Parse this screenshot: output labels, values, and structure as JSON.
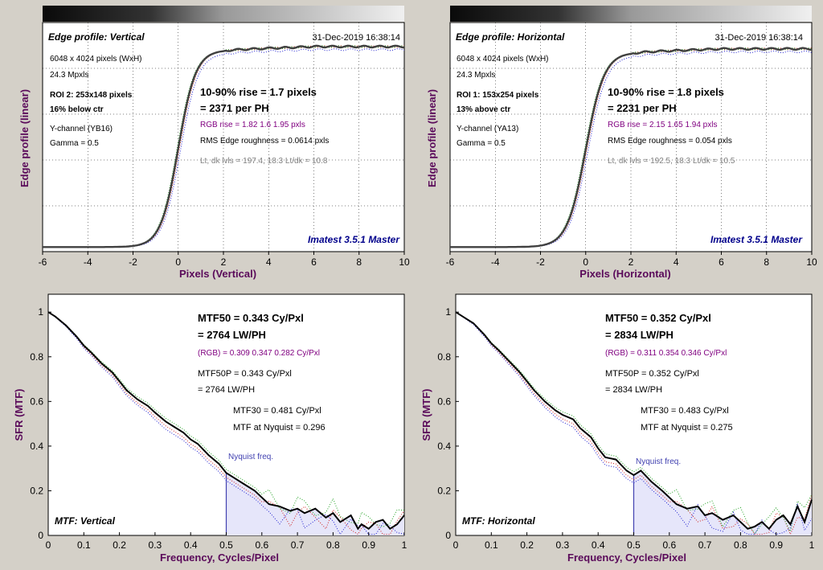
{
  "chart_data": [
    {
      "id": "edge_v",
      "type": "line",
      "title": "Edge profile: Vertical",
      "timestamp": "31-Dec-2019 16:38:14",
      "xlabel": "Pixels (Vertical)",
      "ylabel": "Edge profile (linear)",
      "xlim": [
        -6,
        10
      ],
      "xticks": [
        "-6",
        "-4",
        "-2",
        "0",
        "2",
        "4",
        "6",
        "8",
        "10"
      ],
      "ylim": [
        0,
        1
      ],
      "grid": true,
      "center": 0,
      "rise": 1.7,
      "plateau": 0.88,
      "info": {
        "dims": "6048 x 4024 pixels (WxH)",
        "mp": "24.3 Mpxls",
        "roi": "ROI 2:  253x148 pixels",
        "loc": "16% below ctr",
        "channel": "Y-channel  (YB16)",
        "gamma": "Gamma = 0.5"
      },
      "results": {
        "rise": "10-90% rise = 1.7 pixels",
        "ph": "= 2371 per PH",
        "rgb": "RGB rise = 1.82  1.6  1.95 pxls",
        "rms": "RMS Edge roughness = 0.0614 pxls",
        "lvls": "Lt, dk lvls = 197.4, 18.3   Lt/dk = 10.8"
      },
      "brand": "Imatest 3.5.1 Master"
    },
    {
      "id": "edge_h",
      "type": "line",
      "title": "Edge profile: Horizontal",
      "timestamp": "31-Dec-2019 16:38:14",
      "xlabel": "Pixels (Horizontal)",
      "ylabel": "Edge profile (linear)",
      "xlim": [
        -6,
        10
      ],
      "xticks": [
        "-6",
        "-4",
        "-2",
        "0",
        "2",
        "4",
        "6",
        "8",
        "10"
      ],
      "ylim": [
        0,
        1
      ],
      "grid": true,
      "center": 0,
      "rise": 1.8,
      "plateau": 0.87,
      "info": {
        "dims": "6048 x 4024 pixels (WxH)",
        "mp": "24.3 Mpxls",
        "roi": "ROI 1:  153x254 pixels",
        "loc": "13% above ctr",
        "channel": "Y-channel  (YA13)",
        "gamma": "Gamma = 0.5"
      },
      "results": {
        "rise": "10-90% rise = 1.8 pixels",
        "ph": "= 2231 per PH",
        "rgb": "RGB rise = 2.15  1.65  1.94 pxls",
        "rms": "RMS Edge roughness = 0.054 pxls",
        "lvls": "Lt, dk lvls = 192.5, 18.3   Lt/dk = 10.5"
      },
      "brand": "Imatest 3.5.1 Master"
    },
    {
      "id": "mtf_v",
      "type": "line",
      "title": "MTF: Vertical",
      "xlabel": "Frequency, Cycles/Pixel",
      "ylabel": "SFR (MTF)",
      "xlim": [
        0,
        1
      ],
      "ylim": [
        0,
        1.08
      ],
      "xticks": [
        "0",
        "0.1",
        "0.2",
        "0.3",
        "0.4",
        "0.5",
        "0.6",
        "0.7",
        "0.8",
        "0.9",
        "1"
      ],
      "yticks": [
        "0",
        "0.2",
        "0.4",
        "0.6",
        "0.8",
        "1"
      ],
      "grid": false,
      "nyquist": 0.5,
      "nyquist_label": "Nyquist freq.",
      "series": [
        {
          "x": [
            0,
            0.02,
            0.05,
            0.08,
            0.1,
            0.12,
            0.15,
            0.18,
            0.2,
            0.22,
            0.25,
            0.28,
            0.3,
            0.33,
            0.35,
            0.38,
            0.4,
            0.42,
            0.45,
            0.48,
            0.5,
            0.52,
            0.55,
            0.58,
            0.6,
            0.62,
            0.65,
            0.68,
            0.7,
            0.72,
            0.75,
            0.78,
            0.8,
            0.82,
            0.85,
            0.87,
            0.88,
            0.9,
            0.92,
            0.94,
            0.96,
            0.98,
            1.0
          ],
          "y": [
            1.0,
            0.98,
            0.94,
            0.89,
            0.85,
            0.82,
            0.77,
            0.73,
            0.69,
            0.65,
            0.61,
            0.58,
            0.55,
            0.51,
            0.49,
            0.46,
            0.43,
            0.41,
            0.36,
            0.32,
            0.28,
            0.26,
            0.23,
            0.2,
            0.17,
            0.14,
            0.13,
            0.11,
            0.12,
            0.1,
            0.12,
            0.08,
            0.1,
            0.06,
            0.09,
            0.03,
            0.05,
            0.03,
            0.06,
            0.07,
            0.03,
            0.05,
            0.09
          ]
        }
      ],
      "results": {
        "mtf50": "MTF50 = 0.343 Cy/Pxl",
        "lwph": "= 2764 LW/PH",
        "rgb": "(RGB) = 0.309  0.347  0.282 Cy/Pxl",
        "mtf50p": "MTF50P = 0.343 Cy/Pxl",
        "lwph2": "= 2764 LW/PH",
        "mtf30": "MTF30 = 0.481 Cy/Pxl",
        "nyq": "MTF at Nyquist = 0.296"
      }
    },
    {
      "id": "mtf_h",
      "type": "line",
      "title": "MTF: Horizontal",
      "xlabel": "Frequency, Cycles/Pixel",
      "ylabel": "SFR (MTF)",
      "xlim": [
        0,
        1
      ],
      "ylim": [
        0,
        1.08
      ],
      "xticks": [
        "0",
        "0.1",
        "0.2",
        "0.3",
        "0.4",
        "0.5",
        "0.6",
        "0.7",
        "0.8",
        "0.9",
        "1"
      ],
      "yticks": [
        "0",
        "0.2",
        "0.4",
        "0.6",
        "0.8",
        "1"
      ],
      "grid": false,
      "nyquist": 0.5,
      "nyquist_label": "Nyquist freq.",
      "series": [
        {
          "x": [
            0,
            0.02,
            0.05,
            0.08,
            0.1,
            0.12,
            0.15,
            0.18,
            0.2,
            0.22,
            0.25,
            0.28,
            0.3,
            0.33,
            0.35,
            0.38,
            0.4,
            0.42,
            0.45,
            0.48,
            0.5,
            0.52,
            0.55,
            0.58,
            0.6,
            0.62,
            0.65,
            0.68,
            0.7,
            0.72,
            0.75,
            0.78,
            0.8,
            0.82,
            0.84,
            0.86,
            0.88,
            0.9,
            0.92,
            0.94,
            0.96,
            0.98,
            1.0
          ],
          "y": [
            1.0,
            0.98,
            0.95,
            0.9,
            0.86,
            0.83,
            0.78,
            0.73,
            0.69,
            0.65,
            0.6,
            0.56,
            0.54,
            0.52,
            0.48,
            0.44,
            0.39,
            0.35,
            0.34,
            0.29,
            0.27,
            0.29,
            0.24,
            0.2,
            0.17,
            0.14,
            0.12,
            0.13,
            0.09,
            0.1,
            0.07,
            0.09,
            0.06,
            0.03,
            0.04,
            0.06,
            0.03,
            0.07,
            0.09,
            0.05,
            0.13,
            0.06,
            0.16
          ]
        }
      ],
      "results": {
        "mtf50": "MTF50 = 0.352 Cy/Pxl",
        "lwph": "= 2834 LW/PH",
        "rgb": "(RGB) = 0.311  0.354  0.346 Cy/Pxl",
        "mtf50p": "MTF50P = 0.352 Cy/Pxl",
        "lwph2": "= 2834 LW/PH",
        "mtf30": "MTF30 = 0.483 Cy/Pxl",
        "nyq": "MTF at Nyquist = 0.275"
      }
    }
  ],
  "colors": {
    "accent_purple": "#800080",
    "axis_label": "#5a0a5a",
    "brand": "#00008b",
    "nyquist_fill": "#e6e6fa",
    "nyquist_line": "#4040b0"
  },
  "grayscale_strip": "gray-step-wedge"
}
